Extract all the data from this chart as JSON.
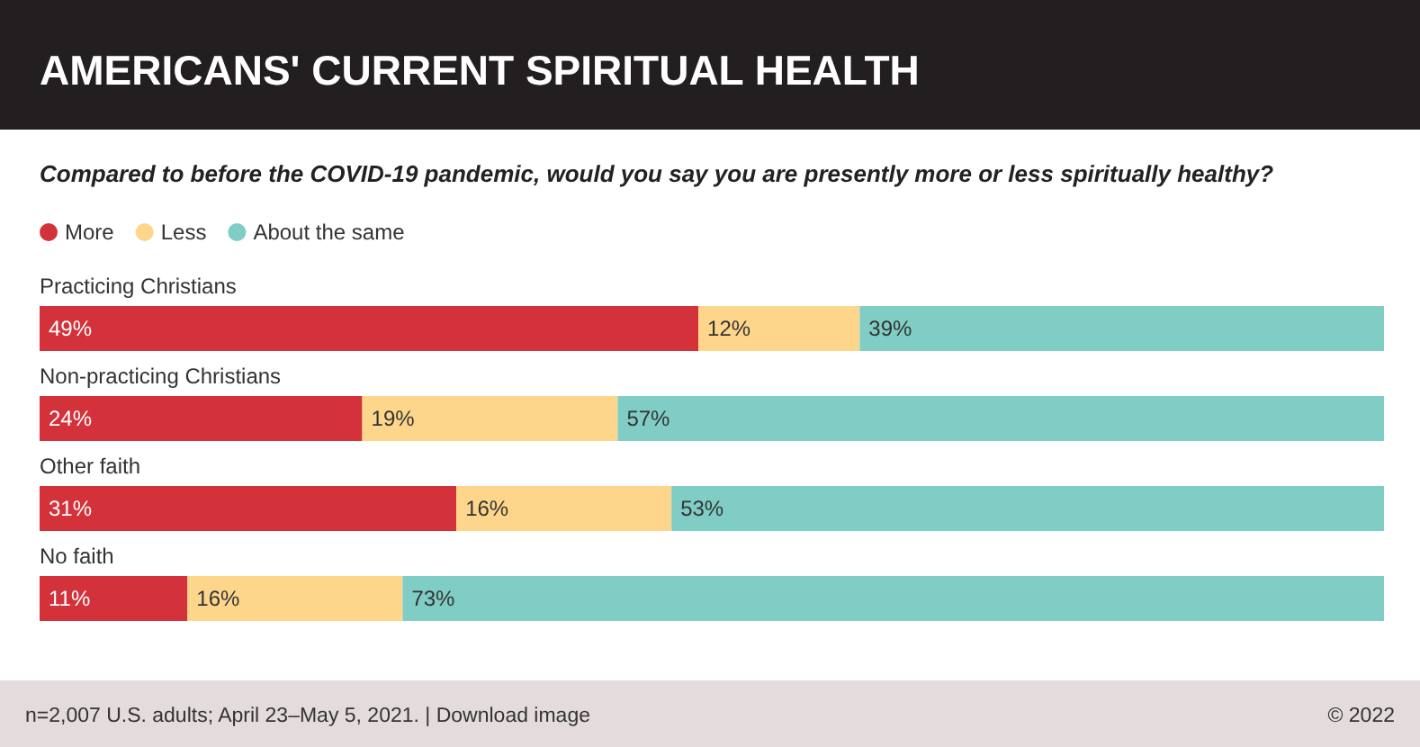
{
  "chart_data": {
    "type": "bar",
    "orientation": "horizontal",
    "stacked": true,
    "title": "AMERICANS' CURRENT SPIRITUAL HEALTH",
    "subtitle": "Compared to before the COVID-19 pandemic, would you say you are presently more or less spiritually healthy?",
    "categories": [
      "Practicing Christians",
      "Non-practicing Christians",
      "Other faith",
      "No faith"
    ],
    "series": [
      {
        "name": "More",
        "color": "#d3323a",
        "values": [
          49,
          24,
          31,
          11
        ],
        "value_labels": [
          "49%",
          "24%",
          "31%",
          "11%"
        ]
      },
      {
        "name": "Less",
        "color": "#fdd68b",
        "values": [
          12,
          19,
          16,
          16
        ],
        "value_labels": [
          "12%",
          "19%",
          "16%",
          "16%"
        ]
      },
      {
        "name": "About the same",
        "color": "#7fcdc4",
        "values": [
          39,
          57,
          53,
          73
        ],
        "value_labels": [
          "39%",
          "57%",
          "53%",
          "73%"
        ]
      }
    ],
    "legend": "top left",
    "annotations": [
      "n=2,007 U.S. adults; April 23–May 5, 2021. | Download image",
      "© 2022"
    ]
  }
}
